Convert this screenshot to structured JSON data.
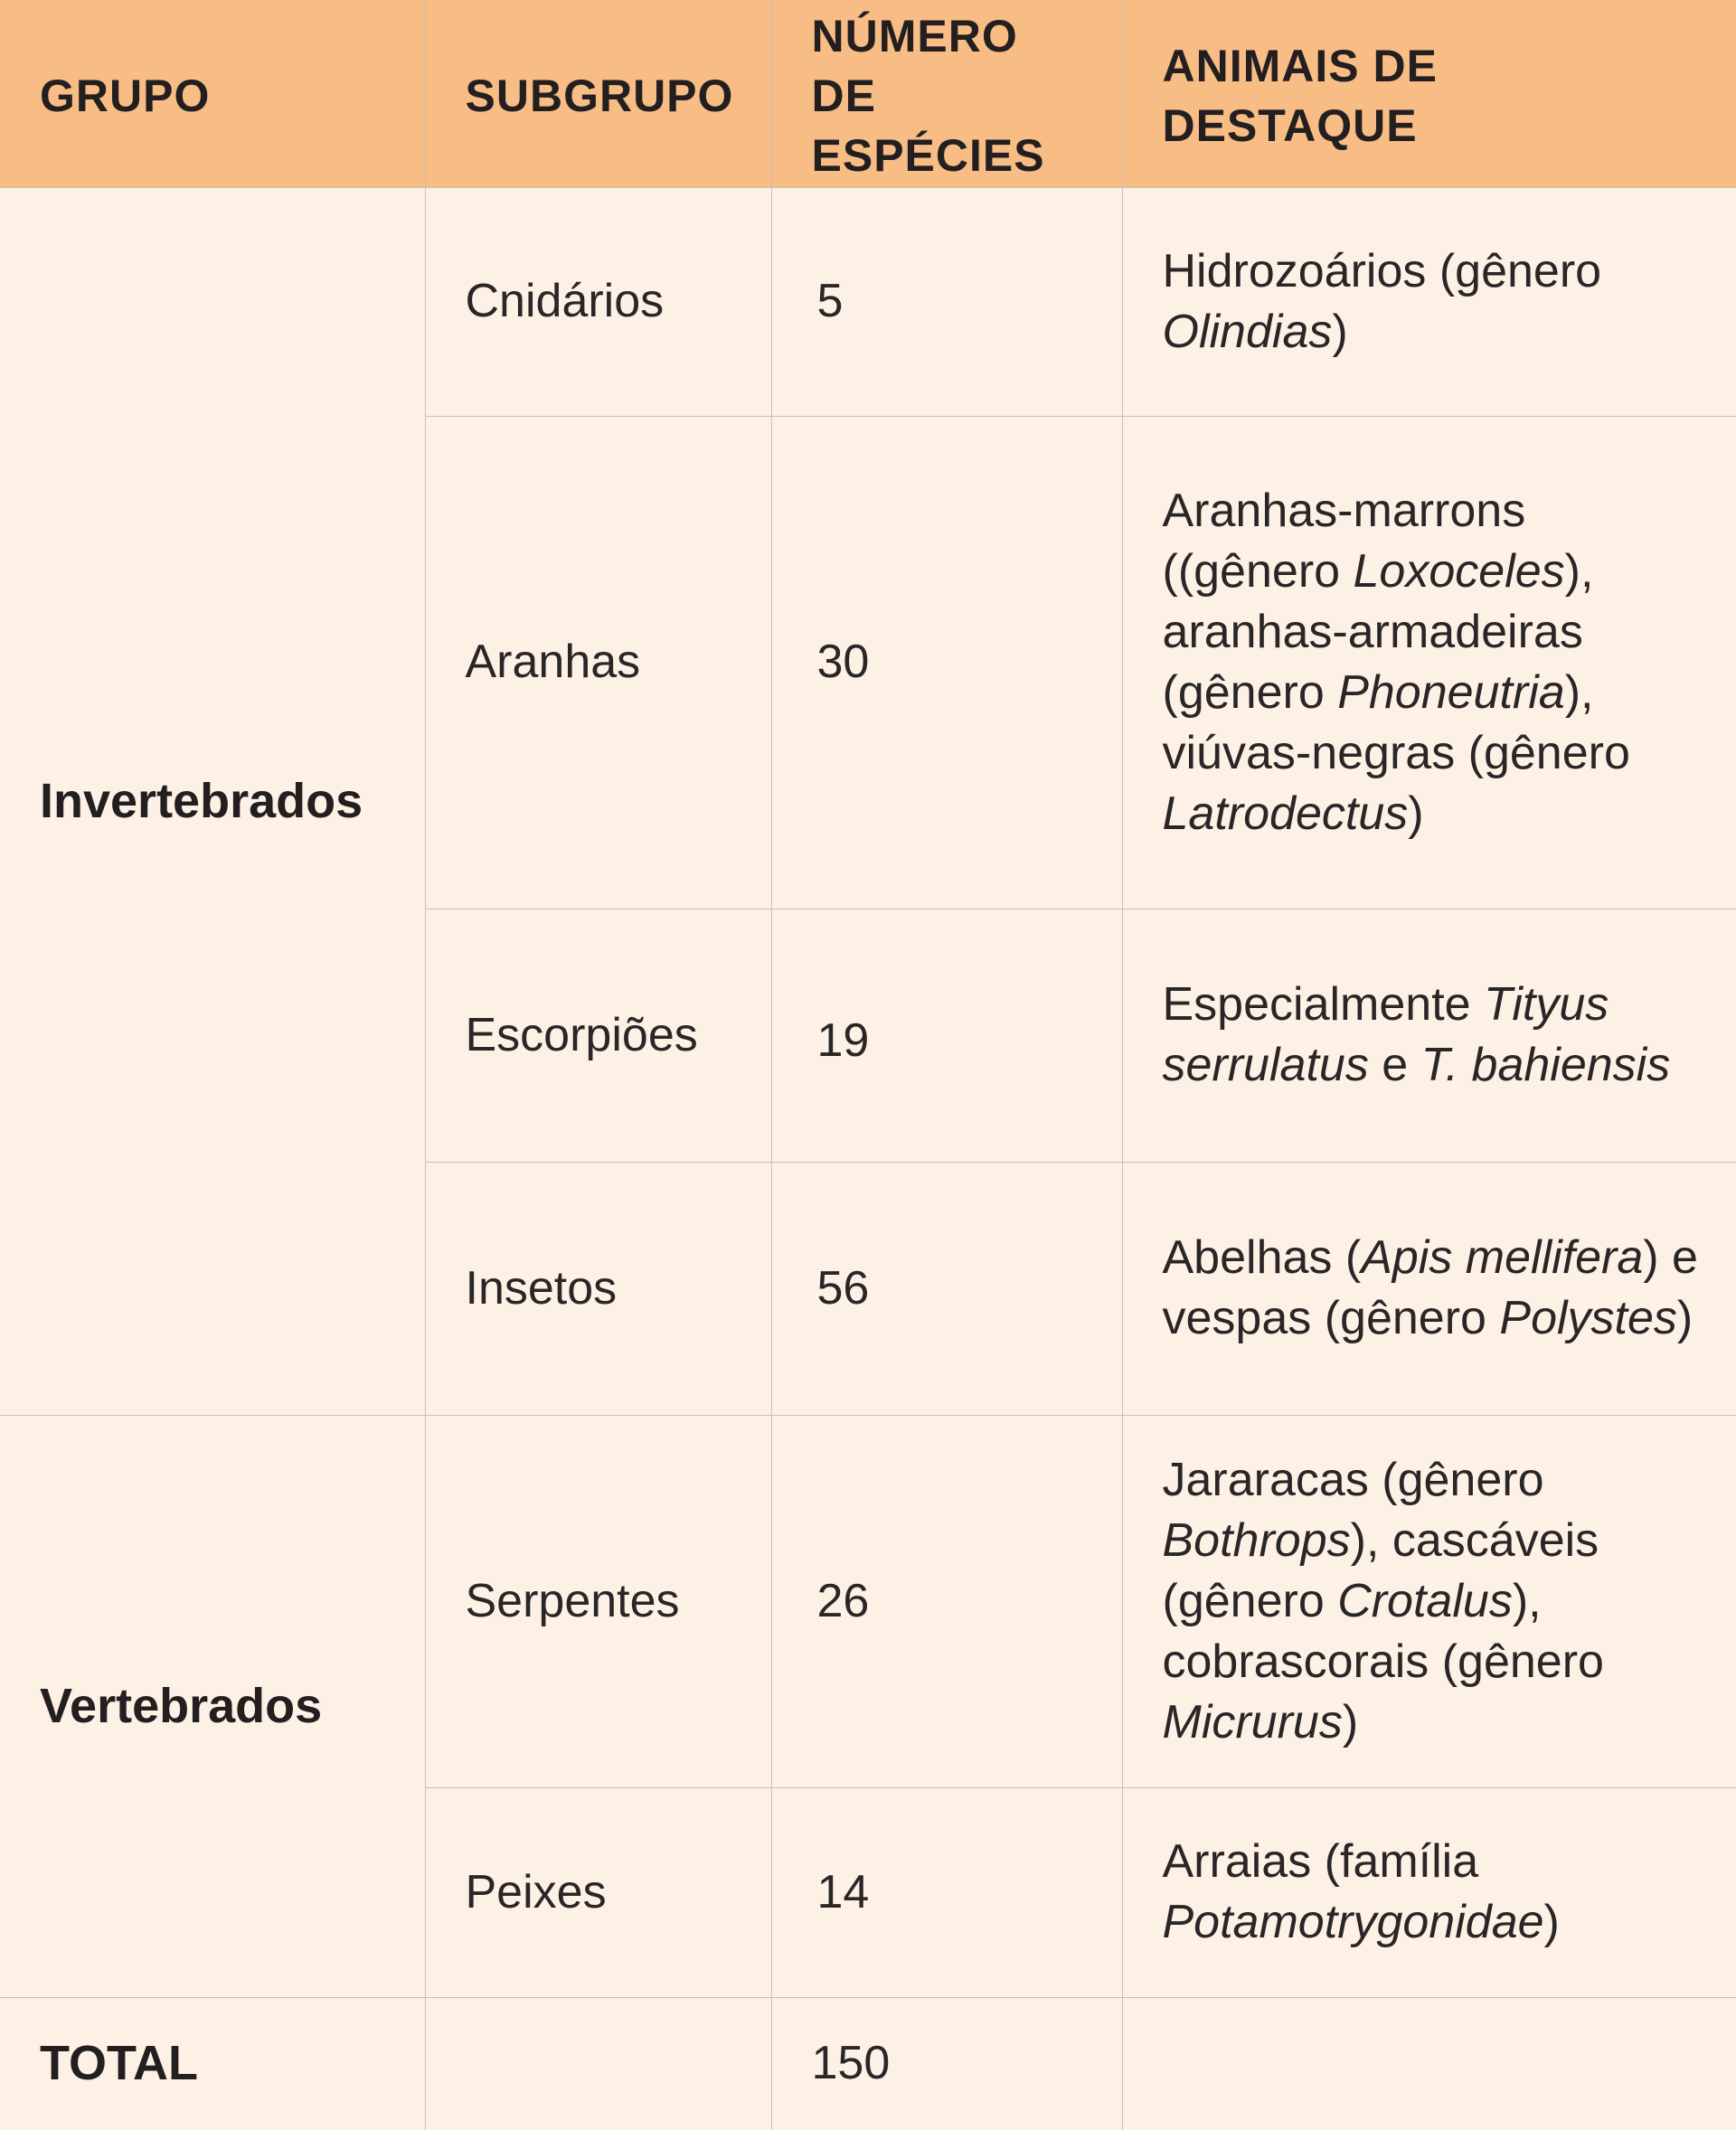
{
  "header": {
    "grupo": "GRUPO",
    "subgrupo": "SUBGRUPO",
    "numero": "NÚMERO DE ESPÉCIES",
    "animais": "ANIMAIS DE DESTAQUE"
  },
  "groups": {
    "invertebrados": "Invertebrados",
    "vertebrados": "Vertebrados"
  },
  "rows": [
    {
      "subgrupo": "Cnidários",
      "numero": "5",
      "animais": [
        {
          "t": "Hidrozoários (gênero "
        },
        {
          "t": "Olindias",
          "i": true
        },
        {
          "t": ")"
        }
      ]
    },
    {
      "subgrupo": "Aranhas",
      "numero": "30",
      "animais": [
        {
          "t": "Aranhas-marrons ((gênero "
        },
        {
          "t": "Loxoceles",
          "i": true
        },
        {
          "t": "), aranhas-armadeiras (gênero "
        },
        {
          "t": "Phoneutria",
          "i": true
        },
        {
          "t": "), viúvas-negras (gênero "
        },
        {
          "t": "Latrodectus",
          "i": true
        },
        {
          "t": ")"
        }
      ]
    },
    {
      "subgrupo": "Escorpiões",
      "numero": "19",
      "animais": [
        {
          "t": "Especialmente "
        },
        {
          "t": "Tityus serrulatus",
          "i": true
        },
        {
          "t": " e "
        },
        {
          "t": "T. bahiensis",
          "i": true
        }
      ]
    },
    {
      "subgrupo": "Insetos",
      "numero": "56",
      "animais": [
        {
          "t": "Abelhas ("
        },
        {
          "t": "Apis mellifera",
          "i": true
        },
        {
          "t": ") e vespas (gênero "
        },
        {
          "t": "Polystes",
          "i": true
        },
        {
          "t": ")"
        }
      ]
    },
    {
      "subgrupo": "Serpentes",
      "numero": "26",
      "animais": [
        {
          "t": "Jararacas (gênero "
        },
        {
          "t": "Bothrops",
          "i": true
        },
        {
          "t": "), cascáveis (gênero "
        },
        {
          "t": "Crotalus",
          "i": true
        },
        {
          "t": "), cobrascorais (gênero "
        },
        {
          "t": "Micrurus",
          "i": true
        },
        {
          "t": ")"
        }
      ]
    },
    {
      "subgrupo": "Peixes",
      "numero": "14",
      "animais": [
        {
          "t": "Arraias (família "
        },
        {
          "t": "Potamotrygonidae",
          "i": true
        },
        {
          "t": ")"
        }
      ]
    }
  ],
  "total": {
    "label": "TOTAL",
    "numero": "150"
  }
}
